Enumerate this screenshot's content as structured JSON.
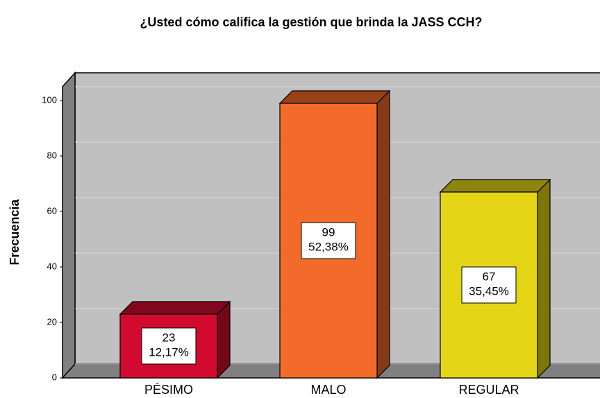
{
  "chart_data": {
    "type": "bar3d",
    "title": "¿Usted cómo califica la gestión que brinda la JASS CCH?",
    "y_label": "Frecuencia",
    "categories": [
      "PÉSIMO",
      "MALO",
      "REGULAR"
    ],
    "values": [
      23,
      99,
      67
    ],
    "percent_labels": [
      "12,17%",
      "52,38%",
      "35,45%"
    ],
    "colors": [
      "#d20a30",
      "#f26b2b",
      "#e4d617"
    ],
    "ylim": [
      0,
      105
    ],
    "yticks": [
      0,
      20,
      40,
      60,
      80,
      100
    ],
    "grid": true
  }
}
